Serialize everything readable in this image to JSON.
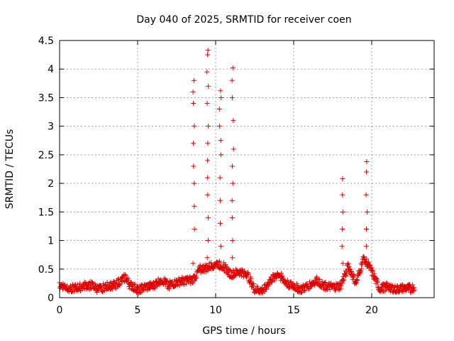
{
  "chart_data": {
    "type": "scatter",
    "title": "Day 040 of 2025, SRMTID for receiver coen",
    "xlabel": "GPS time / hours",
    "ylabel": "SRMTID / TECUs",
    "xlim": [
      0,
      24
    ],
    "ylim": [
      0,
      4.5
    ],
    "x_ticks": [
      0,
      5,
      10,
      15,
      20
    ],
    "x_tick_labels": [
      "0",
      "5",
      "10",
      "15",
      "20"
    ],
    "y_ticks": [
      0,
      0.5,
      1,
      1.5,
      2,
      2.5,
      3,
      3.5,
      4,
      4.5
    ],
    "y_tick_labels": [
      "0",
      "0.5",
      "1",
      "1.5",
      "2",
      "2.5",
      "3",
      "3.5",
      "4",
      "4.5"
    ],
    "grid": true,
    "marker": "+",
    "series": [
      {
        "name": "SRMTID",
        "color": "#e00000",
        "base_profile": [
          [
            0.0,
            0.22
          ],
          [
            0.5,
            0.18
          ],
          [
            1.0,
            0.16
          ],
          [
            1.5,
            0.2
          ],
          [
            2.0,
            0.22
          ],
          [
            2.5,
            0.14
          ],
          [
            3.0,
            0.2
          ],
          [
            3.5,
            0.22
          ],
          [
            4.0,
            0.3
          ],
          [
            4.2,
            0.36
          ],
          [
            4.5,
            0.22
          ],
          [
            5.0,
            0.14
          ],
          [
            5.5,
            0.18
          ],
          [
            6.0,
            0.2
          ],
          [
            6.5,
            0.32
          ],
          [
            7.0,
            0.22
          ],
          [
            7.5,
            0.26
          ],
          [
            8.0,
            0.3
          ],
          [
            8.5,
            0.3
          ],
          [
            9.0,
            0.5
          ],
          [
            9.5,
            0.52
          ],
          [
            10.0,
            0.6
          ],
          [
            10.5,
            0.55
          ],
          [
            11.0,
            0.4
          ],
          [
            11.5,
            0.45
          ],
          [
            12.0,
            0.42
          ],
          [
            12.5,
            0.14
          ],
          [
            13.0,
            0.12
          ],
          [
            13.5,
            0.3
          ],
          [
            14.0,
            0.42
          ],
          [
            14.5,
            0.26
          ],
          [
            15.0,
            0.2
          ],
          [
            15.5,
            0.14
          ],
          [
            16.0,
            0.22
          ],
          [
            16.5,
            0.3
          ],
          [
            17.0,
            0.2
          ],
          [
            17.5,
            0.18
          ],
          [
            18.0,
            0.2
          ],
          [
            18.5,
            0.55
          ],
          [
            19.0,
            0.25
          ],
          [
            19.5,
            0.7
          ],
          [
            20.0,
            0.45
          ],
          [
            20.5,
            0.15
          ],
          [
            21.0,
            0.2
          ],
          [
            21.5,
            0.14
          ],
          [
            22.0,
            0.16
          ],
          [
            22.5,
            0.16
          ],
          [
            22.75,
            0.18
          ]
        ],
        "spikes": [
          {
            "x": 8.6,
            "y": [
              0.6,
              1.2,
              1.6,
              2.0,
              2.3,
              2.7,
              3.0,
              3.4,
              3.6,
              3.8
            ]
          },
          {
            "x": 9.5,
            "y": [
              0.7,
              1.0,
              1.4,
              1.8,
              2.1,
              2.4,
              2.7,
              3.0,
              3.4,
              3.7,
              3.95,
              4.25,
              4.33
            ]
          },
          {
            "x": 10.3,
            "y": [
              0.9,
              1.3,
              1.7,
              2.1,
              2.5,
              2.75,
              3.0,
              3.3,
              3.5,
              3.62
            ]
          },
          {
            "x": 11.1,
            "y": [
              0.7,
              1.0,
              1.4,
              1.7,
              2.0,
              2.3,
              2.6,
              3.1,
              3.5,
              3.8,
              4.02
            ]
          },
          {
            "x": 18.15,
            "y": [
              0.6,
              0.9,
              1.2,
              1.5,
              1.8,
              2.08
            ]
          },
          {
            "x": 19.7,
            "y": [
              0.6,
              0.9,
              1.2,
              1.5,
              1.8,
              2.2,
              2.38
            ]
          }
        ]
      }
    ]
  }
}
